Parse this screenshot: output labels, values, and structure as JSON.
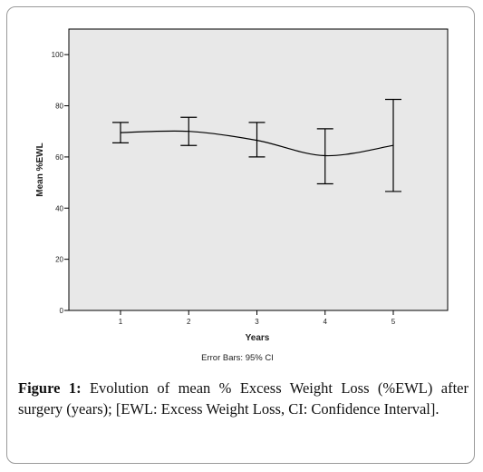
{
  "chart_data": {
    "type": "errorbar-line",
    "xlabel": "Years",
    "ylabel": "Mean %EWL",
    "x": [
      1,
      2,
      3,
      4,
      5
    ],
    "x_tick_labels": [
      "1",
      "2",
      "3",
      "4",
      "5"
    ],
    "y_ticks": [
      0,
      20,
      40,
      60,
      80,
      100
    ],
    "y_tick_labels": [
      "0",
      "20",
      "40",
      "60",
      "80",
      "100"
    ],
    "ylim": [
      0,
      110
    ],
    "mean": [
      69.5,
      70,
      66.5,
      60.5,
      64.5
    ],
    "ci_upper": [
      73.5,
      75.5,
      73.5,
      71,
      82.5
    ],
    "ci_lower": [
      65.5,
      64.5,
      60,
      49.5,
      46.5
    ],
    "grid": false,
    "footnote": "Error Bars: 95% CI",
    "colors": {
      "plot_background": "#e8e8e8",
      "line": "#000000"
    }
  },
  "caption": {
    "label": "Figure 1:",
    "text": " Evolution of mean % Excess Weight Loss (%EWL) after surgery (years); [EWL: Excess Weight Loss, CI: Confidence Interval]."
  }
}
